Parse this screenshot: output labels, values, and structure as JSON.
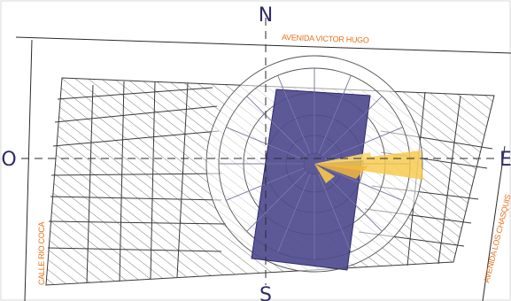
{
  "compass": {
    "north": "N",
    "south": "S",
    "east": "E",
    "west": "O"
  },
  "streets": {
    "north": "AVENIDA VICTOR HUGO",
    "west": "CALLE RIO COCA",
    "east": "AVENIDA LOS CHASQUIS"
  },
  "colors": {
    "building": "#4f4b8e",
    "wind_rose_rays": "#f6c84b",
    "labels": "#e8731a",
    "cardinal": "#2f2a6b",
    "block_outline": "#3a3a3a",
    "hatch": "#6d6d6d"
  },
  "map": {
    "elements": [
      "north-arrow-axis",
      "cardinal-axis",
      "hatched-blocks",
      "wind-rose",
      "project-site-building"
    ]
  }
}
